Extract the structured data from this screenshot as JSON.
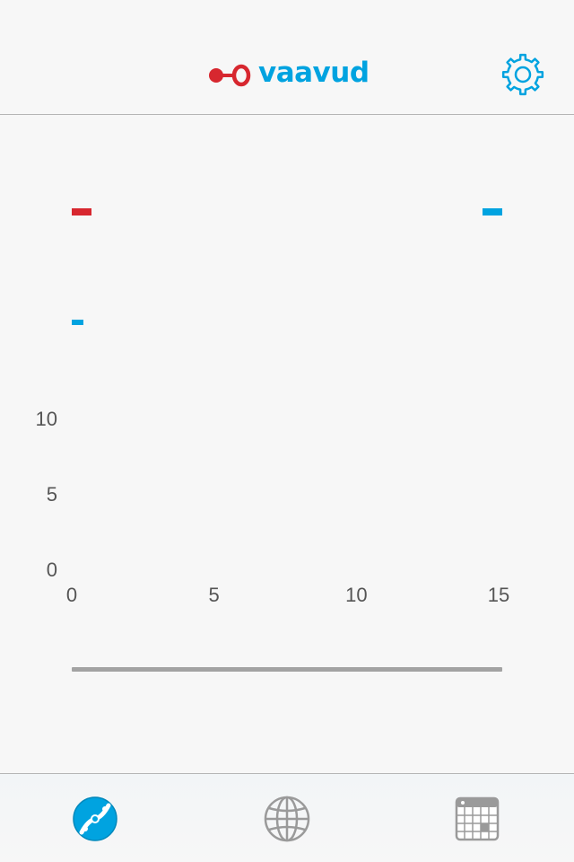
{
  "app": {
    "brand_name": "vaavud"
  },
  "colors": {
    "accent": "#00a3e0",
    "brand_red": "#d7272f",
    "icon_gray": "#9a9a9a",
    "axis_text": "#555555"
  },
  "header": {
    "logo_icon": "vaavud-logo-icon",
    "settings_icon": "gear-icon"
  },
  "indicators": {
    "min": {
      "color": "#d7272f"
    },
    "max": {
      "color": "#00a3e0"
    },
    "avg": {
      "color": "#00a3e0"
    }
  },
  "chart_data": {
    "type": "line",
    "series": [],
    "x_ticks": [
      "0",
      "5",
      "10",
      "15"
    ],
    "y_ticks": [
      "0",
      "5",
      "10"
    ],
    "xlim": [
      0,
      15
    ],
    "ylim": [
      0,
      10
    ],
    "grid": false
  },
  "progress": {
    "fraction": 1.0
  },
  "tabs": [
    {
      "id": "measure",
      "icon": "measure-icon",
      "active": true
    },
    {
      "id": "map",
      "icon": "globe-icon",
      "active": false
    },
    {
      "id": "history",
      "icon": "calendar-icon",
      "active": false
    }
  ]
}
